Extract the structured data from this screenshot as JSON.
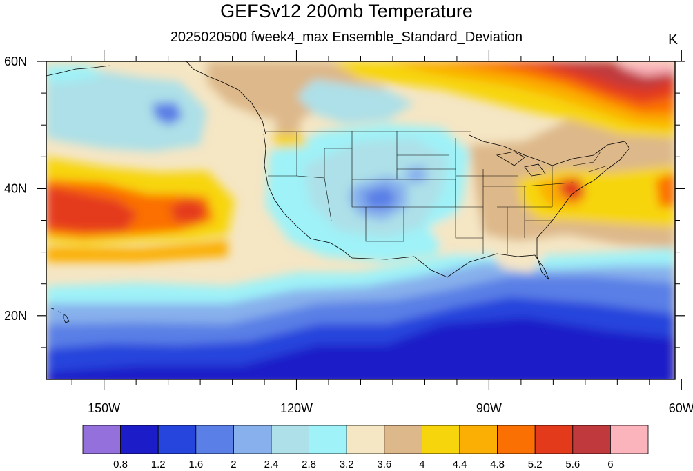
{
  "title": "GEFSv12 200mb Temperature",
  "subtitle": "2025020500 fweek4_max Ensemble_Standard_Deviation",
  "units": "K",
  "map": {
    "lat_ticks": [
      {
        "value": 60,
        "label": "60N"
      },
      {
        "value": 40,
        "label": "40N"
      },
      {
        "value": 20,
        "label": "20N"
      }
    ],
    "lon_ticks": [
      {
        "value": -150,
        "label": "150W"
      },
      {
        "value": -120,
        "label": "120W"
      },
      {
        "value": -90,
        "label": "90W"
      },
      {
        "value": -60,
        "label": "60W"
      }
    ],
    "extent": {
      "lon_min": -159,
      "lon_max": -61,
      "lat_min": 10,
      "lat_max": 60
    }
  },
  "colorbar": {
    "colors": [
      "#9370db",
      "#1c1cc8",
      "#2545dc",
      "#5a7fe6",
      "#87b0ec",
      "#ade0e8",
      "#9ff2f8",
      "#f5e6c4",
      "#ddb88a",
      "#f7d50c",
      "#fbae04",
      "#fb7003",
      "#e43a1c",
      "#c03a3d",
      "#fbb4bb"
    ],
    "labels": [
      "0.8",
      "1.2",
      "1.6",
      "2",
      "2.4",
      "2.8",
      "3.2",
      "3.6",
      "4",
      "4.4",
      "4.8",
      "5.2",
      "5.6",
      "6"
    ]
  }
}
